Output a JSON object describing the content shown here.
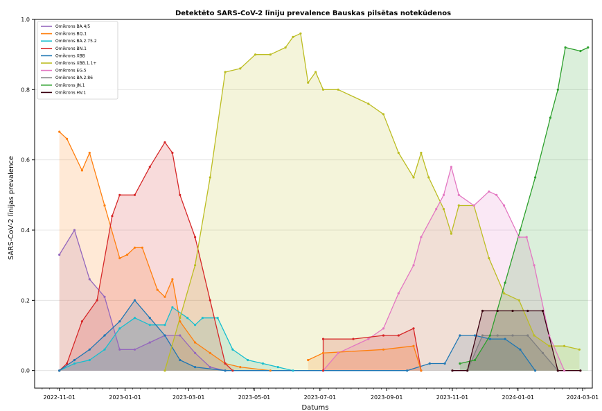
{
  "chart_data": {
    "type": "area",
    "title": "Detektēto SARS-CoV-2 līniju prevalence Bauskas pilsētas notekūdenos",
    "xlabel": "Datums",
    "ylabel": "SARS-CoV-2 līnijas prevalence",
    "xlim": [
      "2022-10-09",
      "2024-03-10"
    ],
    "ylim": [
      -0.05,
      1.0
    ],
    "x_ticks": [
      "2022-11-01",
      "2023-01-01",
      "2023-03-01",
      "2023-05-01",
      "2023-07-01",
      "2023-09-01",
      "2023-11-01",
      "2024-01-01",
      "2024-03-01"
    ],
    "y_ticks": [
      0.0,
      0.2,
      0.4,
      0.6,
      0.8,
      1.0
    ],
    "y_tick_labels": [
      "0.0",
      "0.2",
      "0.4",
      "0.6",
      "0.8",
      "1.0"
    ],
    "grid": "horizontal",
    "legend_position": "top-left",
    "series": [
      {
        "name": "Omikrons BA.4/5",
        "color": "#9467bd",
        "points": [
          [
            "2022-11-01",
            0.33
          ],
          [
            "2022-11-15",
            0.4
          ],
          [
            "2022-11-29",
            0.26
          ],
          [
            "2022-12-13",
            0.21
          ],
          [
            "2022-12-27",
            0.06
          ],
          [
            "2023-01-10",
            0.06
          ],
          [
            "2023-01-24",
            0.08
          ],
          [
            "2023-02-07",
            0.1
          ],
          [
            "2023-02-21",
            0.1
          ],
          [
            "2023-03-07",
            0.05
          ],
          [
            "2023-03-21",
            0.01
          ],
          [
            "2023-04-04",
            0.0
          ]
        ]
      },
      {
        "name": "Omikrons BQ.1",
        "color": "#ff7f0e",
        "points": [
          [
            "2022-11-01",
            0.68
          ],
          [
            "2022-11-08",
            0.66
          ],
          [
            "2022-11-22",
            0.57
          ],
          [
            "2022-11-29",
            0.62
          ],
          [
            "2022-12-13",
            0.47
          ],
          [
            "2022-12-27",
            0.32
          ],
          [
            "2023-01-03",
            0.33
          ],
          [
            "2023-01-10",
            0.35
          ],
          [
            "2023-01-17",
            0.35
          ],
          [
            "2023-01-31",
            0.23
          ],
          [
            "2023-02-07",
            0.21
          ],
          [
            "2023-02-14",
            0.26
          ],
          [
            "2023-02-21",
            0.14
          ],
          [
            "2023-03-07",
            0.08
          ],
          [
            "2023-03-21",
            0.05
          ],
          [
            "2023-04-04",
            0.02
          ],
          [
            "2023-04-18",
            0.01
          ],
          [
            "2023-05-16",
            0.0
          ]
        ]
      },
      {
        "name": "Omikrons BA.2.75.2",
        "color": "#17becf",
        "points": [
          [
            "2022-11-01",
            0.0
          ],
          [
            "2022-11-15",
            0.02
          ],
          [
            "2022-11-29",
            0.03
          ],
          [
            "2022-12-13",
            0.06
          ],
          [
            "2022-12-27",
            0.12
          ],
          [
            "2023-01-10",
            0.15
          ],
          [
            "2023-01-24",
            0.13
          ],
          [
            "2023-02-07",
            0.13
          ],
          [
            "2023-02-14",
            0.18
          ],
          [
            "2023-02-28",
            0.15
          ],
          [
            "2023-03-07",
            0.13
          ],
          [
            "2023-03-14",
            0.15
          ],
          [
            "2023-03-28",
            0.15
          ],
          [
            "2023-04-11",
            0.06
          ],
          [
            "2023-04-25",
            0.03
          ],
          [
            "2023-05-09",
            0.02
          ],
          [
            "2023-05-23",
            0.01
          ],
          [
            "2023-06-06",
            0.0
          ]
        ]
      },
      {
        "name": "Omikrons BN.1",
        "color": "#d62728",
        "points": [
          [
            "2022-11-01",
            0.0
          ],
          [
            "2022-11-08",
            0.02
          ],
          [
            "2022-11-22",
            0.14
          ],
          [
            "2022-12-06",
            0.2
          ],
          [
            "2022-12-20",
            0.44
          ],
          [
            "2022-12-27",
            0.5
          ],
          [
            "2023-01-10",
            0.5
          ],
          [
            "2023-01-24",
            0.58
          ],
          [
            "2023-02-07",
            0.65
          ],
          [
            "2023-02-14",
            0.62
          ],
          [
            "2023-02-21",
            0.5
          ],
          [
            "2023-03-07",
            0.38
          ],
          [
            "2023-03-21",
            0.2
          ],
          [
            "2023-04-04",
            0.02
          ],
          [
            "2023-04-11",
            0.0
          ]
        ]
      },
      {
        "name": "Omikrons XBB",
        "color": "#1f77b4",
        "points": [
          [
            "2022-11-01",
            0.0
          ],
          [
            "2022-11-15",
            0.03
          ],
          [
            "2022-11-29",
            0.06
          ],
          [
            "2022-12-13",
            0.1
          ],
          [
            "2022-12-27",
            0.14
          ],
          [
            "2023-01-10",
            0.2
          ],
          [
            "2023-01-24",
            0.15
          ],
          [
            "2023-02-07",
            0.1
          ],
          [
            "2023-02-21",
            0.03
          ],
          [
            "2023-03-07",
            0.01
          ],
          [
            "2023-04-04",
            0.0
          ],
          [
            "2023-09-20",
            0.0
          ],
          [
            "2023-10-11",
            0.02
          ],
          [
            "2023-10-25",
            0.02
          ],
          [
            "2023-11-08",
            0.1
          ],
          [
            "2023-11-22",
            0.1
          ],
          [
            "2023-12-06",
            0.09
          ],
          [
            "2023-12-20",
            0.09
          ],
          [
            "2024-01-03",
            0.06
          ],
          [
            "2024-01-17",
            0.0
          ]
        ]
      },
      {
        "name": "Omikrons XBB.1.1+",
        "color": "#bcbd22",
        "points": [
          [
            "2023-02-07",
            0.0
          ],
          [
            "2023-02-21",
            0.15
          ],
          [
            "2023-03-07",
            0.3
          ],
          [
            "2023-03-21",
            0.55
          ],
          [
            "2023-04-04",
            0.85
          ],
          [
            "2023-04-18",
            0.86
          ],
          [
            "2023-05-02",
            0.9
          ],
          [
            "2023-05-16",
            0.9
          ],
          [
            "2023-05-30",
            0.92
          ],
          [
            "2023-06-06",
            0.95
          ],
          [
            "2023-06-13",
            0.96
          ],
          [
            "2023-06-20",
            0.82
          ],
          [
            "2023-06-27",
            0.85
          ],
          [
            "2023-07-04",
            0.8
          ],
          [
            "2023-07-18",
            0.8
          ],
          [
            "2023-08-15",
            0.76
          ],
          [
            "2023-08-29",
            0.73
          ],
          [
            "2023-09-12",
            0.62
          ],
          [
            "2023-09-26",
            0.55
          ],
          [
            "2023-10-03",
            0.62
          ],
          [
            "2023-10-10",
            0.55
          ],
          [
            "2023-10-24",
            0.46
          ],
          [
            "2023-10-31",
            0.39
          ],
          [
            "2023-11-07",
            0.47
          ],
          [
            "2023-11-21",
            0.47
          ],
          [
            "2023-12-05",
            0.32
          ],
          [
            "2023-12-19",
            0.22
          ],
          [
            "2024-01-02",
            0.2
          ],
          [
            "2024-01-16",
            0.1
          ],
          [
            "2024-01-30",
            0.07
          ],
          [
            "2024-02-13",
            0.07
          ],
          [
            "2024-02-27",
            0.06
          ]
        ]
      },
      {
        "name": "Omikrons EG.5",
        "color": "#e377c2",
        "points": [
          [
            "2023-07-04",
            0.0
          ],
          [
            "2023-07-18",
            0.05
          ],
          [
            "2023-08-15",
            0.09
          ],
          [
            "2023-08-29",
            0.12
          ],
          [
            "2023-09-12",
            0.22
          ],
          [
            "2023-09-26",
            0.3
          ],
          [
            "2023-10-03",
            0.38
          ],
          [
            "2023-10-17",
            0.46
          ],
          [
            "2023-10-24",
            0.5
          ],
          [
            "2023-10-31",
            0.58
          ],
          [
            "2023-11-07",
            0.5
          ],
          [
            "2023-11-21",
            0.47
          ],
          [
            "2023-12-05",
            0.51
          ],
          [
            "2023-12-12",
            0.5
          ],
          [
            "2023-12-19",
            0.47
          ],
          [
            "2024-01-02",
            0.38
          ],
          [
            "2024-01-09",
            0.38
          ],
          [
            "2024-01-16",
            0.3
          ],
          [
            "2024-01-30",
            0.1
          ],
          [
            "2024-02-13",
            0.0
          ]
        ]
      },
      {
        "name": "Omikrons BA.2.86",
        "color": "#7f7f7f",
        "points": [
          [
            "2023-11-15",
            0.0
          ],
          [
            "2023-11-29",
            0.1
          ],
          [
            "2023-12-13",
            0.1
          ],
          [
            "2023-12-27",
            0.1
          ],
          [
            "2024-01-10",
            0.1
          ],
          [
            "2024-01-24",
            0.05
          ],
          [
            "2024-02-07",
            0.0
          ]
        ]
      },
      {
        "name": "Omikrons JN.1",
        "color": "#2ca02c",
        "points": [
          [
            "2023-11-08",
            0.02
          ],
          [
            "2023-11-22",
            0.03
          ],
          [
            "2023-12-06",
            0.1
          ],
          [
            "2023-12-20",
            0.25
          ],
          [
            "2024-01-03",
            0.4
          ],
          [
            "2024-01-17",
            0.55
          ],
          [
            "2024-01-31",
            0.72
          ],
          [
            "2024-02-07",
            0.8
          ],
          [
            "2024-02-14",
            0.92
          ],
          [
            "2024-02-28",
            0.91
          ],
          [
            "2024-03-06",
            0.92
          ]
        ]
      },
      {
        "name": "Omikrons HV.1",
        "color": "#3a0010",
        "points": [
          [
            "2023-11-01",
            0.0
          ],
          [
            "2023-11-15",
            0.0
          ],
          [
            "2023-11-29",
            0.17
          ],
          [
            "2023-12-13",
            0.17
          ],
          [
            "2023-12-27",
            0.17
          ],
          [
            "2024-01-10",
            0.17
          ],
          [
            "2024-01-24",
            0.17
          ],
          [
            "2024-02-07",
            0.0
          ],
          [
            "2024-02-28",
            0.0
          ]
        ]
      },
      {
        "name": "",
        "color": "#d62728",
        "points": [
          [
            "2023-07-04",
            0.0
          ],
          [
            "2023-07-04",
            0.09
          ],
          [
            "2023-08-01",
            0.09
          ],
          [
            "2023-08-29",
            0.1
          ],
          [
            "2023-09-12",
            0.1
          ],
          [
            "2023-09-26",
            0.12
          ],
          [
            "2023-10-03",
            0.0
          ]
        ]
      },
      {
        "name": "",
        "color": "#ff7f0e",
        "points": [
          [
            "2023-06-20",
            0.03
          ],
          [
            "2023-07-04",
            0.05
          ],
          [
            "2023-08-29",
            0.06
          ],
          [
            "2023-09-26",
            0.07
          ],
          [
            "2023-10-03",
            0.0
          ]
        ]
      }
    ]
  }
}
